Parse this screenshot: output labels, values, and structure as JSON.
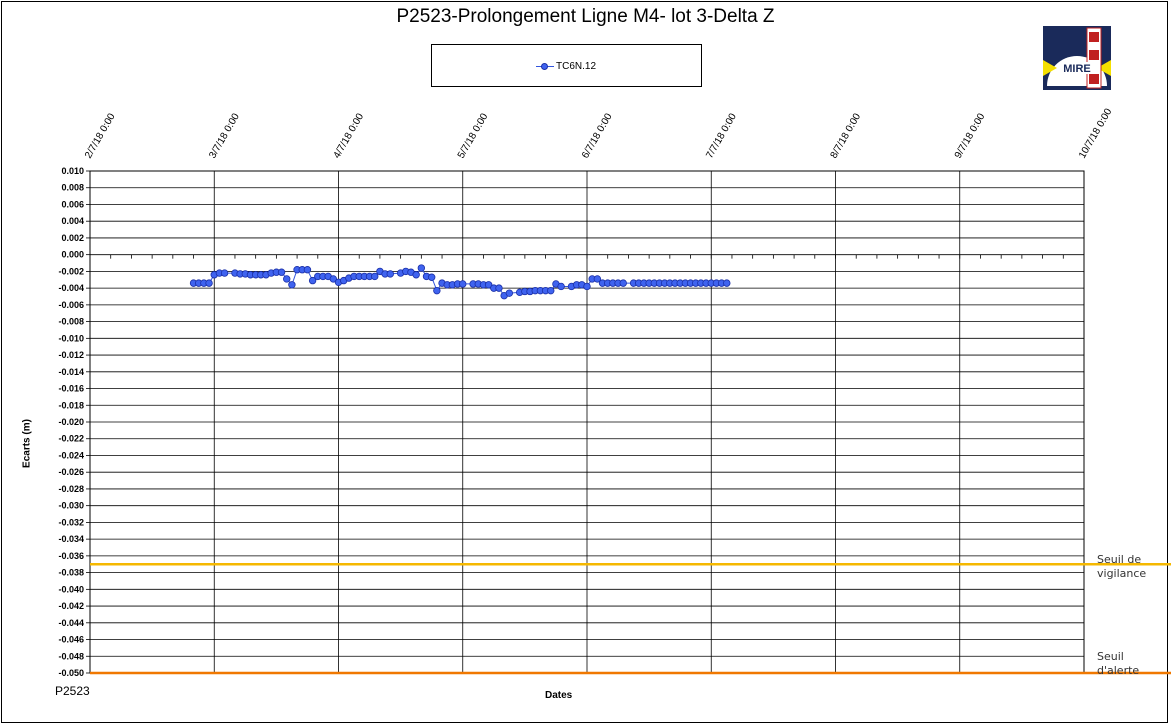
{
  "chart_data": {
    "type": "line",
    "title": "P2523-Prolongement  Ligne  M4- lot 3-Delta Z",
    "xlabel": "Dates",
    "ylabel": "Ecarts (m)",
    "footer": "P2523",
    "legend_position": "top-center",
    "grid": true,
    "x_ticks": [
      "2/7/18 0:00",
      "3/7/18 0:00",
      "4/7/18 0:00",
      "5/7/18 0:00",
      "6/7/18 0:00",
      "7/7/18 0:00",
      "8/7/18 0:00",
      "9/7/18 0:00",
      "10/7/18 0:00"
    ],
    "x_range": [
      "2018-07-02",
      "2018-07-10"
    ],
    "ylim": [
      -0.05,
      0.01
    ],
    "y_step": 0.002,
    "y_ticks": [
      "0.010",
      "0.008",
      "0.006",
      "0.004",
      "0.002",
      "0.000",
      "-0.002",
      "-0.004",
      "-0.006",
      "-0.008",
      "-0.010",
      "-0.012",
      "-0.014",
      "-0.016",
      "-0.018",
      "-0.020",
      "-0.022",
      "-0.024",
      "-0.026",
      "-0.028",
      "-0.030",
      "-0.032",
      "-0.034",
      "-0.036",
      "-0.038",
      "-0.040",
      "-0.042",
      "-0.044",
      "-0.046",
      "-0.048",
      "-0.050"
    ],
    "series": [
      {
        "name": "TC6N.12",
        "color": "#3f63ef",
        "x": [
          "2018-07-02 20:00",
          "2018-07-02 21:00",
          "2018-07-02 22:00",
          "2018-07-02 23:00",
          "2018-07-03 00:00",
          "2018-07-03 01:00",
          "2018-07-03 02:00",
          "2018-07-03 04:00",
          "2018-07-03 05:00",
          "2018-07-03 06:00",
          "2018-07-03 07:00",
          "2018-07-03 08:00",
          "2018-07-03 09:00",
          "2018-07-03 10:00",
          "2018-07-03 11:00",
          "2018-07-03 12:00",
          "2018-07-03 13:00",
          "2018-07-03 14:00",
          "2018-07-03 15:00",
          "2018-07-03 16:00",
          "2018-07-03 17:00",
          "2018-07-03 18:00",
          "2018-07-03 19:00",
          "2018-07-03 20:00",
          "2018-07-03 21:00",
          "2018-07-03 22:00",
          "2018-07-03 23:00",
          "2018-07-04 00:00",
          "2018-07-04 01:00",
          "2018-07-04 02:00",
          "2018-07-04 03:00",
          "2018-07-04 04:00",
          "2018-07-04 05:00",
          "2018-07-04 06:00",
          "2018-07-04 07:00",
          "2018-07-04 08:00",
          "2018-07-04 09:00",
          "2018-07-04 10:00",
          "2018-07-04 12:00",
          "2018-07-04 13:00",
          "2018-07-04 14:00",
          "2018-07-04 15:00",
          "2018-07-04 16:00",
          "2018-07-04 17:00",
          "2018-07-04 18:00",
          "2018-07-04 19:00",
          "2018-07-04 20:00",
          "2018-07-04 21:00",
          "2018-07-04 22:00",
          "2018-07-04 23:00",
          "2018-07-05 00:00",
          "2018-07-05 02:00",
          "2018-07-05 03:00",
          "2018-07-05 04:00",
          "2018-07-05 05:00",
          "2018-07-05 06:00",
          "2018-07-05 07:00",
          "2018-07-05 08:00",
          "2018-07-05 09:00",
          "2018-07-05 11:00",
          "2018-07-05 12:00",
          "2018-07-05 13:00",
          "2018-07-05 14:00",
          "2018-07-05 15:00",
          "2018-07-05 16:00",
          "2018-07-05 17:00",
          "2018-07-05 18:00",
          "2018-07-05 19:00",
          "2018-07-05 21:00",
          "2018-07-05 22:00",
          "2018-07-05 23:00",
          "2018-07-06 00:00",
          "2018-07-06 01:00",
          "2018-07-06 02:00",
          "2018-07-06 03:00",
          "2018-07-06 04:00",
          "2018-07-06 05:00",
          "2018-07-06 06:00",
          "2018-07-06 07:00",
          "2018-07-06 09:00",
          "2018-07-06 10:00",
          "2018-07-06 11:00",
          "2018-07-06 12:00",
          "2018-07-06 13:00",
          "2018-07-06 14:00",
          "2018-07-06 15:00",
          "2018-07-06 16:00",
          "2018-07-06 17:00",
          "2018-07-06 18:00",
          "2018-07-06 19:00",
          "2018-07-06 20:00",
          "2018-07-06 21:00",
          "2018-07-06 22:00",
          "2018-07-06 23:00",
          "2018-07-07 00:00",
          "2018-07-07 01:00",
          "2018-07-07 02:00",
          "2018-07-07 03:00"
        ],
        "y": [
          -0.0034,
          -0.0034,
          -0.0034,
          -0.0034,
          -0.0024,
          -0.0022,
          -0.0022,
          -0.0022,
          -0.0023,
          -0.0023,
          -0.0024,
          -0.0024,
          -0.0024,
          -0.0024,
          -0.0022,
          -0.0021,
          -0.0021,
          -0.0029,
          -0.0036,
          -0.0018,
          -0.0018,
          -0.0018,
          -0.0031,
          -0.0026,
          -0.0026,
          -0.0026,
          -0.0029,
          -0.0033,
          -0.0031,
          -0.0028,
          -0.0026,
          -0.0026,
          -0.0026,
          -0.0026,
          -0.0026,
          -0.002,
          -0.0023,
          -0.0023,
          -0.0022,
          -0.002,
          -0.0021,
          -0.0024,
          -0.0016,
          -0.0026,
          -0.0027,
          -0.0043,
          -0.0034,
          -0.0036,
          -0.0036,
          -0.0035,
          -0.0035,
          -0.0035,
          -0.0035,
          -0.0036,
          -0.0036,
          -0.004,
          -0.004,
          -0.0049,
          -0.0046,
          -0.0045,
          -0.0044,
          -0.0044,
          -0.0043,
          -0.0043,
          -0.0043,
          -0.0043,
          -0.0035,
          -0.0038,
          -0.0038,
          -0.0036,
          -0.0036,
          -0.0038,
          -0.0029,
          -0.0029,
          -0.0034,
          -0.0034,
          -0.0034,
          -0.0034,
          -0.0034,
          -0.0034,
          -0.0034,
          -0.0034,
          -0.0034,
          -0.0034,
          -0.0034,
          -0.0034,
          -0.0034,
          -0.0034,
          -0.0034,
          -0.0034,
          -0.0034,
          -0.0034,
          -0.0034,
          -0.0034,
          -0.0034,
          -0.0034,
          -0.0034,
          -0.0034
        ]
      }
    ],
    "thresholds": [
      {
        "label_line1": "Seuil de",
        "label_line2": "vigilance",
        "value": -0.037,
        "color": "#f5b800"
      },
      {
        "label_line1": "Seuil",
        "label_line2": "d'alerte",
        "value": -0.05,
        "color": "#f07800"
      }
    ],
    "logo_text": "MIRE"
  }
}
